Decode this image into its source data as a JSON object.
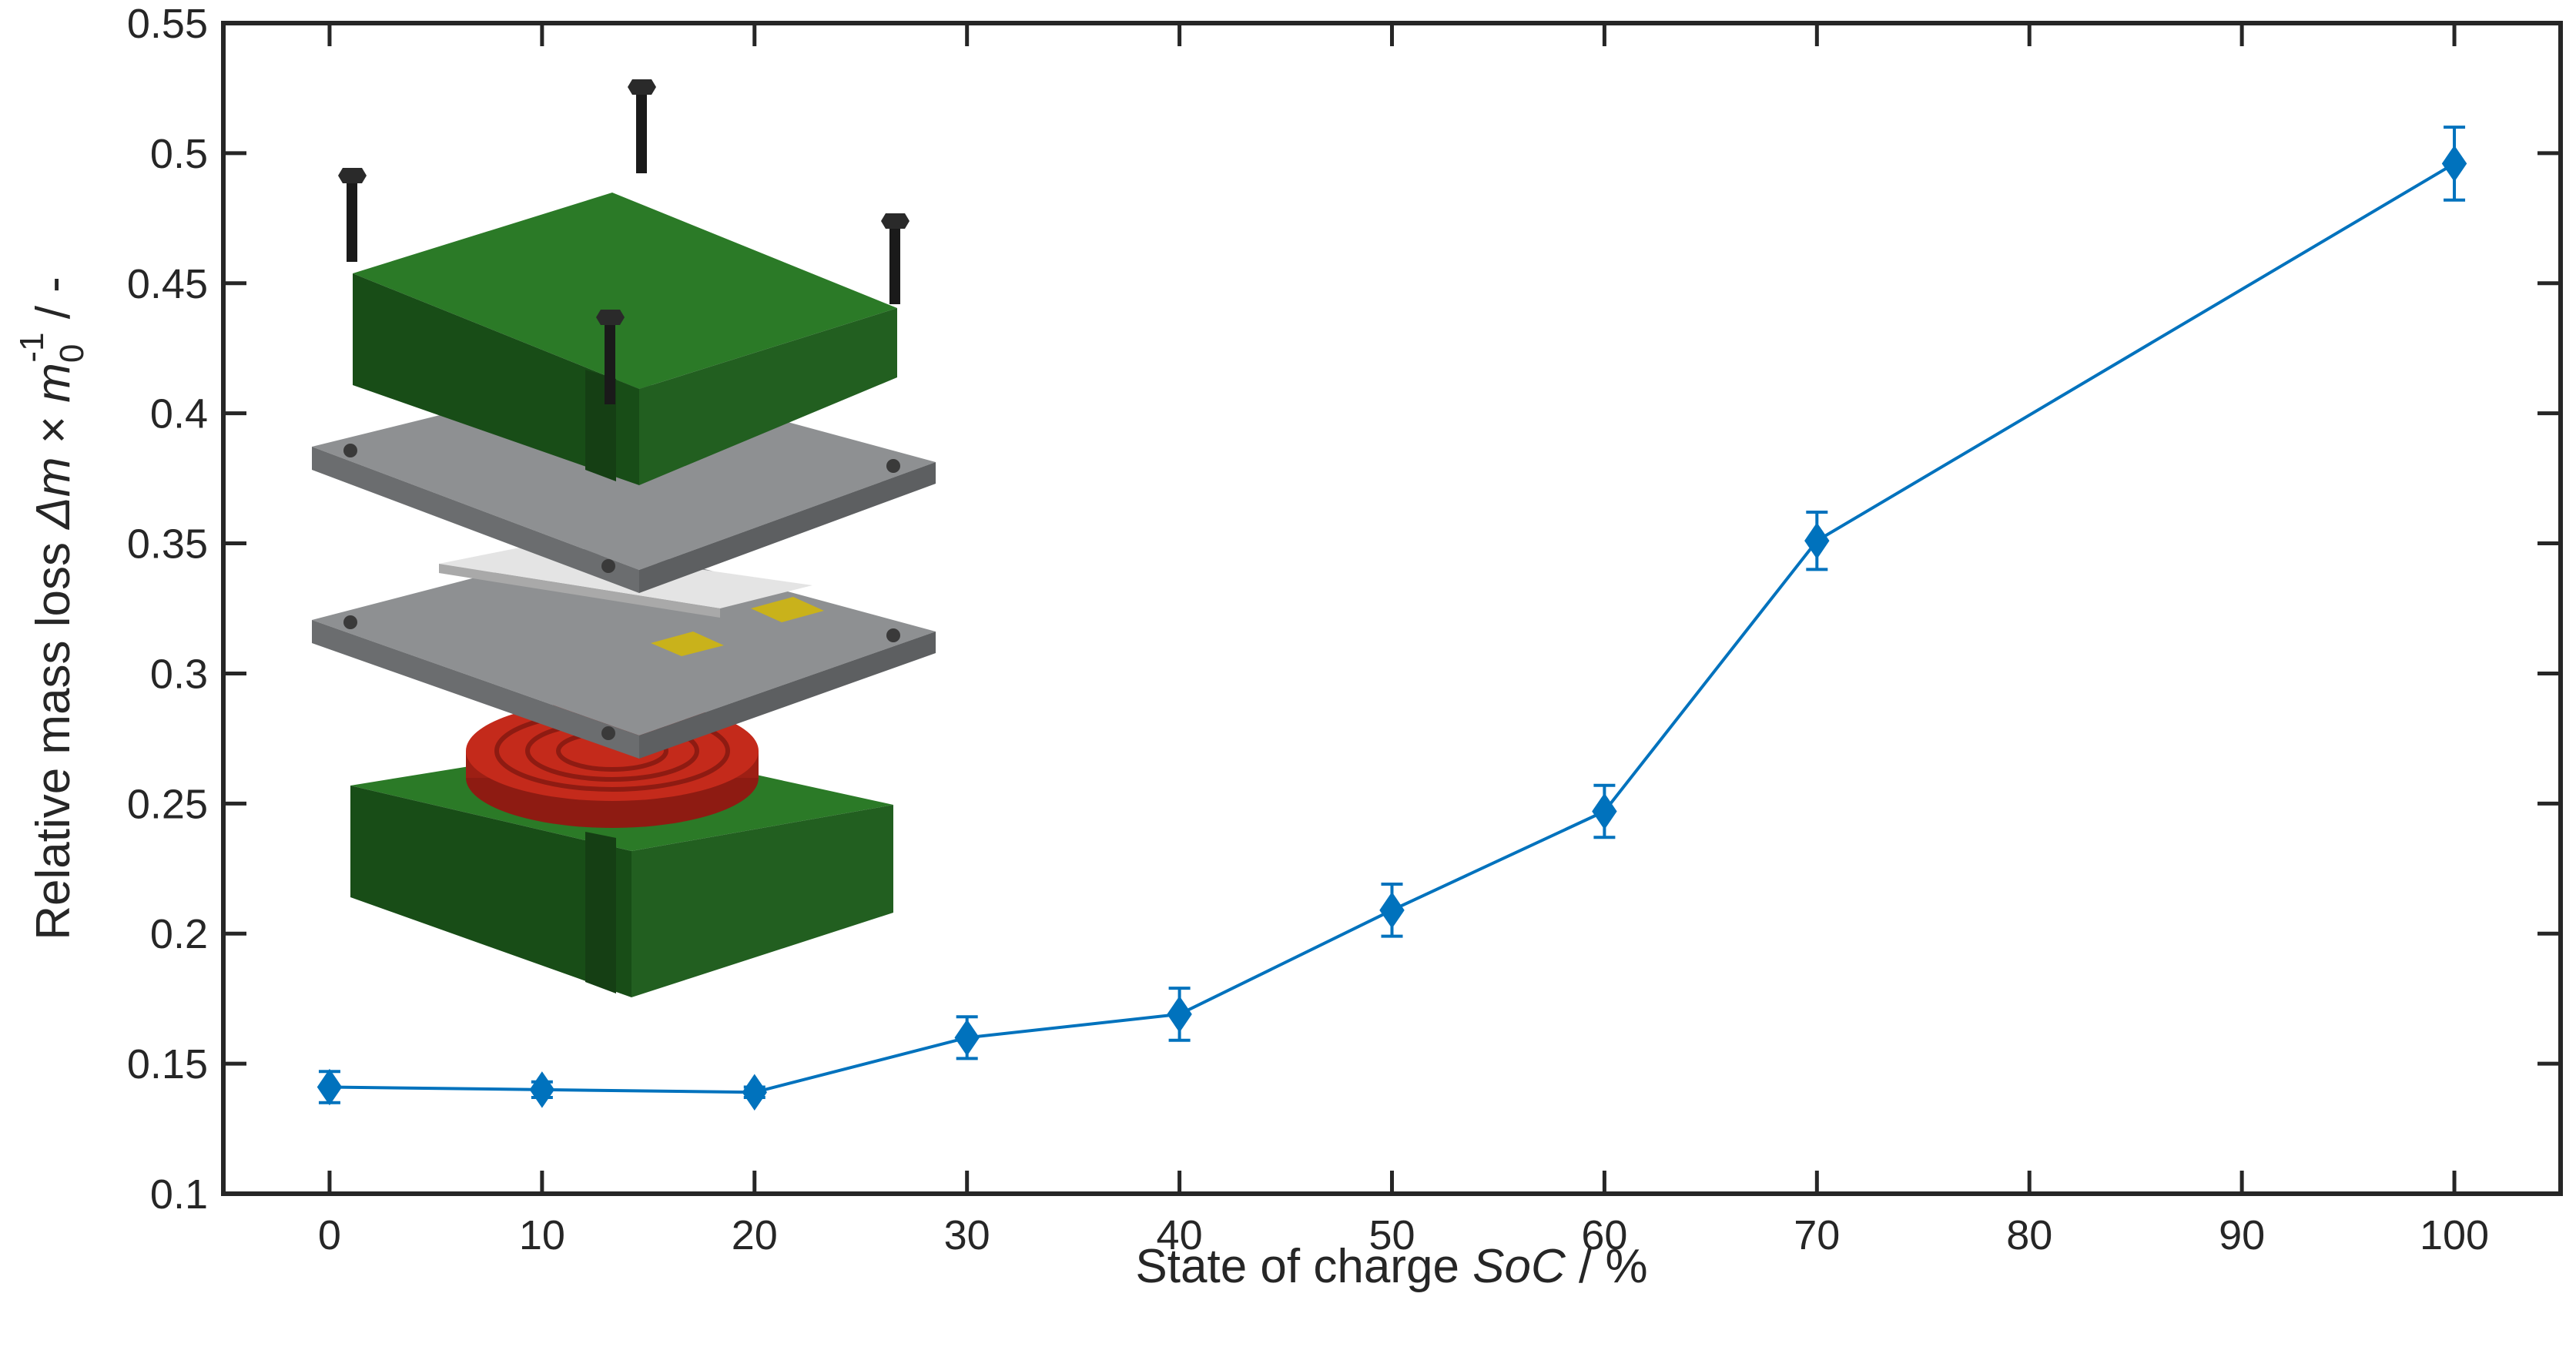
{
  "chart_data": {
    "type": "line",
    "title": "",
    "xlabel": {
      "prefix": "State of charge ",
      "symbol": "SoC",
      "suffix": " / %"
    },
    "ylabel": {
      "prefix": "Relative mass loss ",
      "delta": "Δ",
      "m": "m",
      "times": " × ",
      "m0": "m",
      "sub": "0",
      "sup": "-1",
      "suffix": " / -"
    },
    "xlim": [
      -5,
      105
    ],
    "ylim": [
      0.1,
      0.55
    ],
    "xticks": [
      0,
      10,
      20,
      30,
      40,
      50,
      60,
      70,
      80,
      90,
      100
    ],
    "yticks": [
      0.1,
      0.15,
      0.2,
      0.25,
      0.3,
      0.35,
      0.4,
      0.45,
      0.5,
      0.55
    ],
    "ytick_labels": [
      "0.1",
      "0.15",
      "0.2",
      "0.25",
      "0.3",
      "0.35",
      "0.4",
      "0.45",
      "0.5",
      "0.55"
    ],
    "grid": false,
    "legend": "none",
    "color": "#0072BD",
    "marker": "diamond",
    "series": [
      {
        "x": [
          0,
          10,
          20,
          30,
          40,
          50,
          60,
          70,
          100
        ],
        "y": [
          0.141,
          0.14,
          0.139,
          0.16,
          0.169,
          0.209,
          0.247,
          0.351,
          0.496
        ],
        "err": [
          0.006,
          0.003,
          0.002,
          0.008,
          0.01,
          0.01,
          0.01,
          0.011,
          0.014
        ]
      }
    ]
  },
  "inset": {
    "description_icon": "cell-holder-exploded-view-icon",
    "colors": {
      "clamp_plate": "#1f5a1c",
      "steel_plate": "#8a8c8e",
      "sample": "#d8d8d8",
      "tab": "#c9b21b",
      "spring": "#b32418",
      "bolt": "#1a1a1a"
    }
  }
}
